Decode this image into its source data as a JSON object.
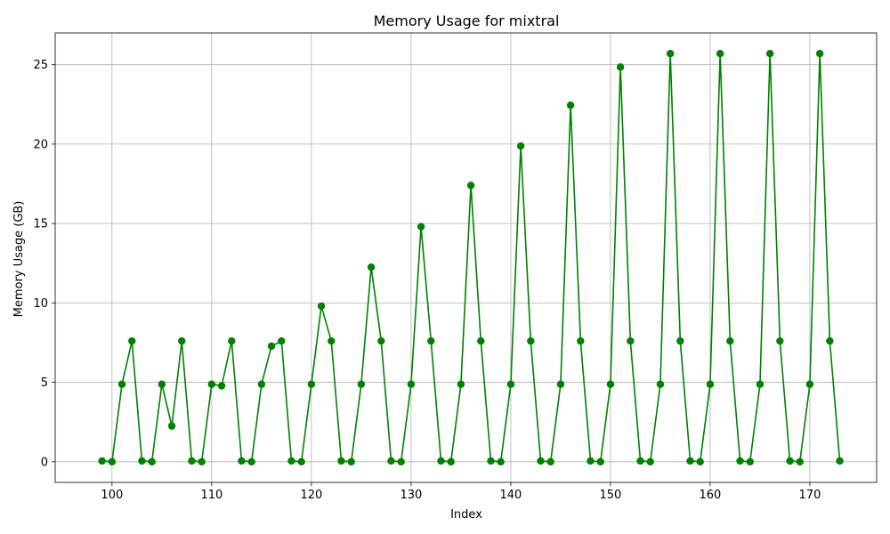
{
  "chart_data": {
    "type": "line",
    "title": "Memory Usage for mixtral",
    "xlabel": "Index",
    "ylabel": "Memory Usage (GB)",
    "xlim": [
      94.3,
      176.7
    ],
    "ylim": [
      -1.3,
      27.0
    ],
    "xticks": [
      100,
      110,
      120,
      130,
      140,
      150,
      160,
      170
    ],
    "yticks": [
      0,
      5,
      10,
      15,
      20,
      25
    ],
    "grid": true,
    "series": [
      {
        "color": "#008000",
        "marker": "circle",
        "x": [
          99,
          100,
          101,
          102,
          103,
          104,
          105,
          106,
          107,
          108,
          109,
          110,
          111,
          112,
          113,
          114,
          115,
          116,
          117,
          118,
          119,
          120,
          121,
          122,
          123,
          124,
          125,
          126,
          127,
          128,
          129,
          130,
          131,
          132,
          133,
          134,
          135,
          136,
          137,
          138,
          139,
          140,
          141,
          142,
          143,
          144,
          145,
          146,
          147,
          148,
          149,
          150,
          151,
          152,
          153,
          154,
          155,
          156,
          157,
          158,
          159,
          160,
          161,
          162,
          163,
          164,
          165,
          166,
          167,
          168,
          169,
          170,
          171,
          172,
          173
        ],
        "y": [
          0.05,
          0.0,
          4.88,
          7.6,
          0.05,
          0.0,
          4.88,
          2.25,
          7.6,
          0.05,
          0.0,
          4.88,
          4.78,
          7.6,
          0.05,
          0.0,
          4.88,
          7.28,
          7.6,
          0.05,
          0.0,
          4.88,
          9.8,
          7.6,
          0.05,
          0.0,
          4.88,
          12.25,
          7.6,
          0.05,
          0.0,
          4.88,
          14.8,
          7.6,
          0.05,
          0.0,
          4.88,
          17.4,
          7.6,
          0.05,
          0.0,
          4.88,
          19.88,
          7.6,
          0.05,
          0.0,
          4.88,
          22.45,
          7.6,
          0.05,
          0.0,
          4.88,
          24.85,
          7.6,
          0.05,
          0.0,
          4.88,
          25.7,
          7.6,
          0.05,
          0.0,
          4.88,
          25.7,
          7.6,
          0.05,
          0.0,
          4.88,
          25.7,
          7.6,
          0.05,
          0.0,
          4.88,
          25.7,
          7.6,
          0.05
        ]
      }
    ]
  }
}
